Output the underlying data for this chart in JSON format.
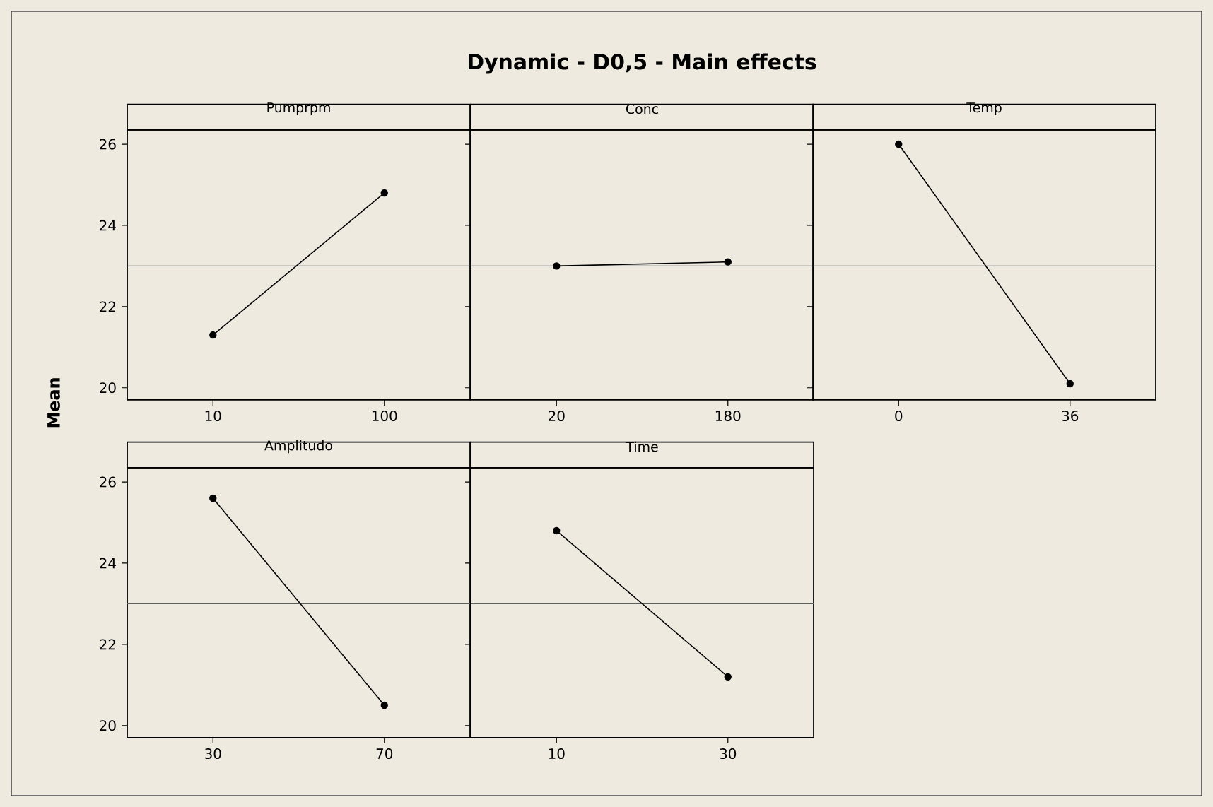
{
  "chart_data": [
    {
      "type": "line",
      "title": "Pumprpm",
      "ylabel": "Mean",
      "annotations": [
        "Dynamic - D0,5 - Main effects"
      ],
      "categories": [
        "10",
        "100"
      ],
      "values": [
        21.3,
        24.8
      ],
      "color": "#000000",
      "marker": "circle",
      "ylim": [
        19.7,
        26.35
      ],
      "yticks": [
        20,
        22,
        24,
        26
      ],
      "ref_lines": [
        {
          "axis": "y",
          "value": 23,
          "color": "#606060"
        }
      ]
    },
    {
      "type": "line",
      "title": "Conc",
      "categories": [
        "20",
        "180"
      ],
      "values": [
        23.0,
        23.1
      ],
      "color": "#000000",
      "marker": "circle",
      "ylim": [
        19.7,
        26.35
      ],
      "yticks": [
        20,
        22,
        24,
        26
      ],
      "tick_labels": "x",
      "ref_lines": [
        {
          "axis": "y",
          "value": 23,
          "color": "#606060"
        }
      ]
    },
    {
      "type": "line",
      "title": "Temp",
      "categories": [
        "0",
        "36"
      ],
      "values": [
        26.0,
        20.1
      ],
      "color": "#000000",
      "marker": "circle",
      "ylim": [
        19.7,
        26.35
      ],
      "yticks": [
        20,
        22,
        24,
        26
      ],
      "tick_labels": "x",
      "ref_lines": [
        {
          "axis": "y",
          "value": 23,
          "color": "#606060"
        }
      ]
    },
    {
      "type": "line",
      "title": "Amplitudo",
      "categories": [
        "30",
        "70"
      ],
      "values": [
        25.6,
        20.5
      ],
      "color": "#000000",
      "marker": "circle",
      "ylim": [
        19.7,
        26.35
      ],
      "yticks": [
        20,
        22,
        24,
        26
      ],
      "ref_lines": [
        {
          "axis": "y",
          "value": 23,
          "color": "#606060"
        }
      ]
    },
    {
      "type": "line",
      "title": "Time",
      "categories": [
        "10",
        "30"
      ],
      "values": [
        24.8,
        21.2
      ],
      "color": "#000000",
      "marker": "circle",
      "ylim": [
        19.7,
        26.35
      ],
      "yticks": [
        20,
        22,
        24,
        26
      ],
      "tick_labels": "x",
      "ref_lines": [
        {
          "axis": "y",
          "value": 23,
          "color": "#606060"
        }
      ]
    }
  ]
}
